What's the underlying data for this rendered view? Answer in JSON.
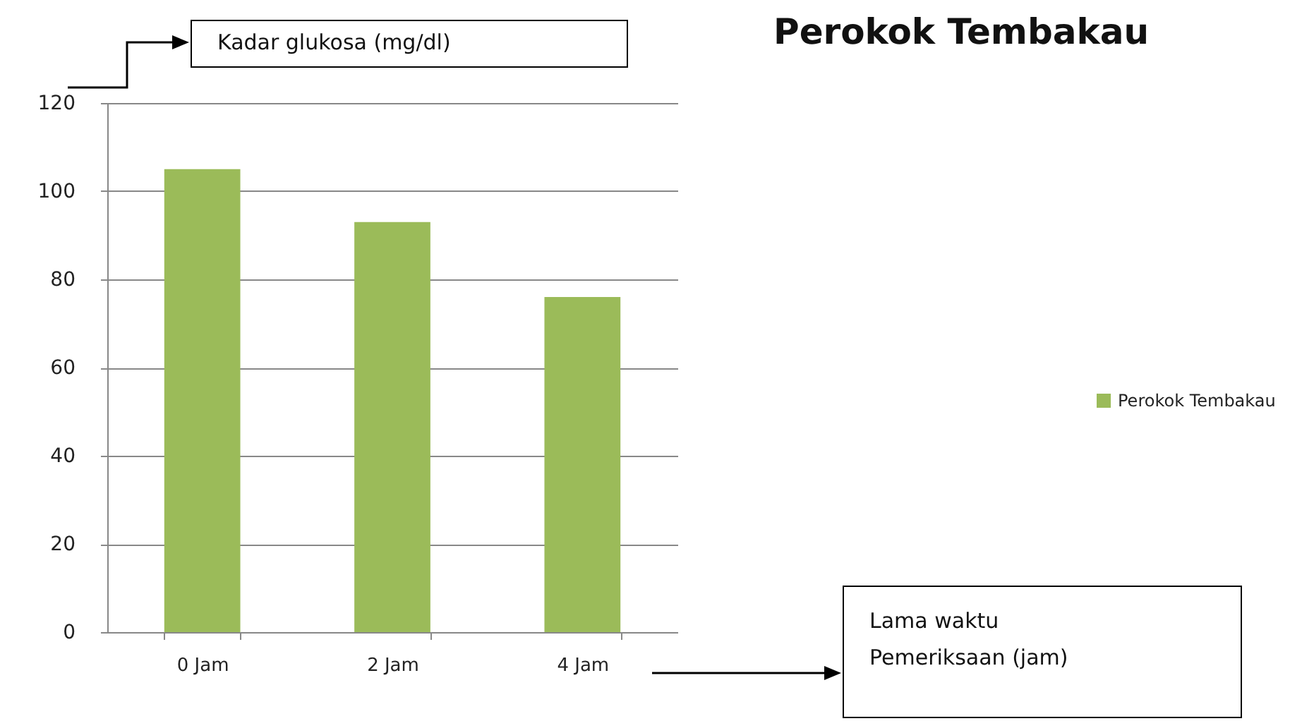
{
  "chart_data": {
    "type": "bar",
    "title": "Perokok Tembakau",
    "ylabel": "Kadar glukosa (mg/dl)",
    "annotations": [
      "Lama waktu Pemeriksaan (jam)"
    ],
    "categories": [
      "0 Jam",
      "2 Jam",
      "4 Jam"
    ],
    "series": [
      {
        "name": "Perokok Tembakau",
        "color": "#9bbb59",
        "values": [
          105,
          93,
          76
        ]
      }
    ],
    "ylim": [
      0,
      120
    ],
    "yticks": [
      0,
      20,
      40,
      60,
      80,
      100,
      120
    ],
    "grid": "y",
    "legend": "right"
  }
}
